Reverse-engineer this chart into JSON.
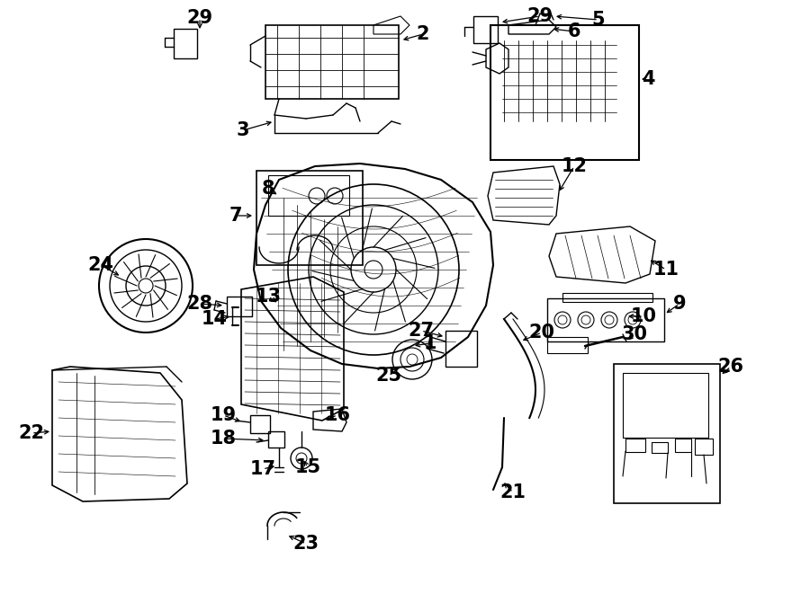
{
  "bg_color": "#ffffff",
  "line_color": "#000000",
  "lw": 1.0
}
